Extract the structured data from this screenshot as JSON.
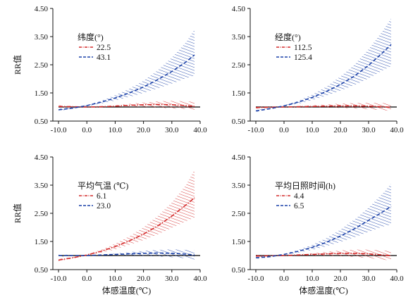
{
  "figure": {
    "shared_xlabel": "体感温度(℃)",
    "shared_ylabel": "RR值"
  },
  "chart_data": [
    {
      "type": "line",
      "legend_title": "纬度(°)",
      "legend_position": "top-left",
      "xlim": [
        -12,
        40
      ],
      "ylim": [
        0.5,
        4.5
      ],
      "x_ticks": [
        -10,
        0,
        10,
        20,
        30,
        40
      ],
      "x_tick_labels": [
        "-10.0",
        "0.0",
        "10.0",
        "20.0",
        "30.0",
        "40.0"
      ],
      "y_ticks": [
        0.5,
        1.5,
        2.5,
        3.5,
        4.5
      ],
      "y_tick_labels": [
        "0.50",
        "1.50",
        "2.50",
        "3.50",
        "4.50"
      ],
      "ylabel": "RR值",
      "xlabel": "",
      "reference_line": 1.0,
      "series": [
        {
          "name": "22.5",
          "color": "#d42a2a",
          "x": [
            -10,
            -5,
            0,
            5,
            10,
            15,
            20,
            25,
            30,
            35,
            38
          ],
          "values": [
            1.02,
            1.01,
            1.0,
            1.01,
            1.03,
            1.06,
            1.08,
            1.09,
            1.08,
            1.05,
            1.02
          ],
          "ci_lower": [
            0.98,
            0.99,
            1.0,
            1.0,
            1.0,
            1.01,
            1.0,
            0.98,
            0.95,
            0.93,
            0.9
          ],
          "ci_upper": [
            1.06,
            1.03,
            1.0,
            1.02,
            1.06,
            1.11,
            1.16,
            1.2,
            1.22,
            1.2,
            1.18
          ]
        },
        {
          "name": "43.1",
          "color": "#1a40a8",
          "x": [
            -10,
            -5,
            0,
            5,
            10,
            15,
            20,
            25,
            30,
            35,
            38
          ],
          "values": [
            0.9,
            0.96,
            1.05,
            1.17,
            1.32,
            1.5,
            1.71,
            1.97,
            2.26,
            2.6,
            2.85
          ],
          "ci_lower": [
            0.86,
            0.94,
            1.03,
            1.12,
            1.23,
            1.36,
            1.5,
            1.66,
            1.83,
            2.02,
            2.12
          ],
          "ci_upper": [
            0.94,
            0.98,
            1.07,
            1.22,
            1.42,
            1.65,
            1.93,
            2.3,
            2.75,
            3.3,
            3.75
          ]
        }
      ]
    },
    {
      "type": "line",
      "legend_title": "经度(°)",
      "legend_position": "top-left",
      "xlim": [
        -12,
        40
      ],
      "ylim": [
        0.5,
        4.5
      ],
      "x_ticks": [
        -10,
        0,
        10,
        20,
        30,
        40
      ],
      "x_tick_labels": [
        "-10.0",
        "0.0",
        "10.0",
        "20.0",
        "30.0",
        "40.0"
      ],
      "y_ticks": [
        0.5,
        1.5,
        2.5,
        3.5,
        4.5
      ],
      "y_tick_labels": [
        "0.50",
        "1.50",
        "2.50",
        "3.50",
        "4.50"
      ],
      "ylabel": "",
      "xlabel": "",
      "reference_line": 1.0,
      "series": [
        {
          "name": "112.5",
          "color": "#d42a2a",
          "x": [
            -10,
            -5,
            0,
            5,
            10,
            15,
            20,
            25,
            30,
            35,
            38
          ],
          "values": [
            0.98,
            0.99,
            1.0,
            1.01,
            1.02,
            1.03,
            1.04,
            1.04,
            1.03,
            1.01,
            0.99
          ],
          "ci_lower": [
            0.94,
            0.97,
            1.0,
            1.0,
            0.99,
            0.98,
            0.97,
            0.95,
            0.92,
            0.89,
            0.86
          ],
          "ci_upper": [
            1.02,
            1.01,
            1.0,
            1.03,
            1.06,
            1.09,
            1.12,
            1.14,
            1.15,
            1.14,
            1.12
          ]
        },
        {
          "name": "125.4",
          "color": "#1a40a8",
          "x": [
            -10,
            -5,
            0,
            5,
            10,
            15,
            20,
            25,
            30,
            35,
            38
          ],
          "values": [
            0.86,
            0.94,
            1.04,
            1.17,
            1.34,
            1.55,
            1.8,
            2.1,
            2.48,
            2.93,
            3.22
          ],
          "ci_lower": [
            0.82,
            0.92,
            1.02,
            1.12,
            1.24,
            1.4,
            1.58,
            1.78,
            2.02,
            2.3,
            2.45
          ],
          "ci_upper": [
            0.9,
            0.96,
            1.06,
            1.22,
            1.44,
            1.72,
            2.08,
            2.5,
            3.05,
            3.7,
            4.15
          ]
        }
      ]
    },
    {
      "type": "line",
      "legend_title": "平均气温 (℃)",
      "legend_position": "top-left",
      "xlim": [
        -12,
        40
      ],
      "ylim": [
        0.5,
        4.5
      ],
      "x_ticks": [
        -10,
        0,
        10,
        20,
        30,
        40
      ],
      "x_tick_labels": [
        "-10.0",
        "0.0",
        "10.0",
        "20.0",
        "30.0",
        "40.0"
      ],
      "y_ticks": [
        0.5,
        1.5,
        2.5,
        3.5,
        4.5
      ],
      "y_tick_labels": [
        "0.50",
        "1.50",
        "2.50",
        "3.50",
        "4.50"
      ],
      "ylabel": "RR值",
      "xlabel": "体感温度(℃)",
      "reference_line": 1.0,
      "series": [
        {
          "name": "6.1",
          "color": "#d42a2a",
          "x": [
            -10,
            -5,
            0,
            5,
            10,
            15,
            20,
            25,
            30,
            35,
            38
          ],
          "values": [
            0.84,
            0.92,
            1.02,
            1.15,
            1.32,
            1.52,
            1.76,
            2.05,
            2.4,
            2.8,
            3.05
          ],
          "ci_lower": [
            0.8,
            0.9,
            1.0,
            1.1,
            1.22,
            1.38,
            1.55,
            1.75,
            1.98,
            2.22,
            2.35
          ],
          "ci_upper": [
            0.88,
            0.94,
            1.04,
            1.2,
            1.42,
            1.68,
            2.0,
            2.4,
            2.88,
            3.5,
            4.05
          ]
        },
        {
          "name": "23.0",
          "color": "#1a40a8",
          "x": [
            -10,
            -5,
            0,
            5,
            10,
            15,
            20,
            25,
            30,
            35,
            38
          ],
          "values": [
            1.0,
            1.0,
            1.0,
            1.02,
            1.04,
            1.06,
            1.08,
            1.09,
            1.08,
            1.05,
            1.02
          ],
          "ci_lower": [
            0.96,
            0.98,
            1.0,
            1.01,
            1.01,
            1.0,
            0.99,
            0.97,
            0.94,
            0.9,
            0.86
          ],
          "ci_upper": [
            1.04,
            1.02,
            1.0,
            1.03,
            1.07,
            1.12,
            1.17,
            1.2,
            1.22,
            1.2,
            1.18
          ]
        }
      ]
    },
    {
      "type": "line",
      "legend_title": "平均日照时间(h)",
      "legend_position": "top-left",
      "xlim": [
        -12,
        40
      ],
      "ylim": [
        0.5,
        4.5
      ],
      "x_ticks": [
        -10,
        0,
        10,
        20,
        30,
        40
      ],
      "x_tick_labels": [
        "-10.0",
        "0.0",
        "10.0",
        "20.0",
        "30.0",
        "40.0"
      ],
      "y_ticks": [
        0.5,
        1.5,
        2.5,
        3.5,
        4.5
      ],
      "y_tick_labels": [
        "0.50",
        "1.50",
        "2.50",
        "3.50",
        "4.50"
      ],
      "ylabel": "",
      "xlabel": "体感温度(℃)",
      "reference_line": 1.0,
      "series": [
        {
          "name": "4.4",
          "color": "#d42a2a",
          "x": [
            -10,
            -5,
            0,
            5,
            10,
            15,
            20,
            25,
            30,
            35,
            38
          ],
          "values": [
            0.98,
            0.99,
            1.0,
            1.02,
            1.04,
            1.06,
            1.08,
            1.08,
            1.06,
            1.02,
            0.99
          ],
          "ci_lower": [
            0.94,
            0.97,
            1.0,
            1.0,
            1.0,
            0.99,
            0.98,
            0.95,
            0.91,
            0.86,
            0.82
          ],
          "ci_upper": [
            1.02,
            1.01,
            1.0,
            1.04,
            1.08,
            1.13,
            1.18,
            1.21,
            1.21,
            1.18,
            1.16
          ]
        },
        {
          "name": "6.5",
          "color": "#1a40a8",
          "x": [
            -10,
            -5,
            0,
            5,
            10,
            15,
            20,
            25,
            30,
            35,
            38
          ],
          "values": [
            0.92,
            0.96,
            1.04,
            1.15,
            1.29,
            1.47,
            1.69,
            1.95,
            2.25,
            2.55,
            2.75
          ],
          "ci_lower": [
            0.88,
            0.94,
            1.02,
            1.1,
            1.2,
            1.33,
            1.48,
            1.65,
            1.84,
            2.03,
            2.1
          ],
          "ci_upper": [
            0.96,
            0.98,
            1.06,
            1.2,
            1.38,
            1.62,
            1.92,
            2.28,
            2.7,
            3.2,
            3.55
          ]
        }
      ]
    }
  ]
}
